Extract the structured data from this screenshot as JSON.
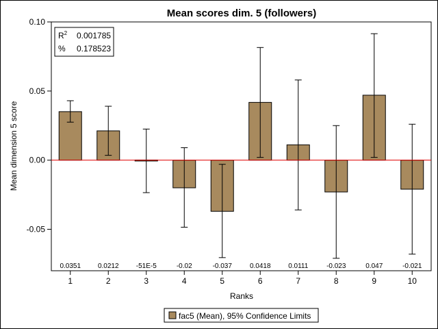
{
  "chart_data": {
    "type": "bar",
    "title": "Mean scores dim. 5 (followers)",
    "xlabel": "Ranks",
    "ylabel": "Mean dimension 5 score",
    "categories": [
      "1",
      "2",
      "3",
      "4",
      "5",
      "6",
      "7",
      "8",
      "9",
      "10"
    ],
    "values": [
      0.0351,
      0.0212,
      -0.00051,
      -0.02,
      -0.037,
      0.0418,
      0.0111,
      -0.023,
      0.047,
      -0.021
    ],
    "value_labels": [
      "0.0351",
      "0.0212",
      "-51E-5",
      "-0.02",
      "-0.037",
      "0.0418",
      "0.0111",
      "-0.023",
      "0.047",
      "-0.021"
    ],
    "ci_upper": [
      0.043,
      0.039,
      0.0225,
      0.009,
      -0.003,
      0.0815,
      0.058,
      0.025,
      0.0915,
      0.026
    ],
    "ci_lower": [
      0.0275,
      0.0035,
      -0.0235,
      -0.0485,
      -0.0705,
      0.002,
      -0.036,
      -0.071,
      0.002,
      -0.068
    ],
    "ylim": [
      -0.08,
      0.1
    ],
    "yticks": [
      -0.05,
      0.0,
      0.05,
      0.1
    ],
    "ytick_labels": [
      "-0.05",
      "0.00",
      "0.05",
      "0.10"
    ],
    "reference_line": 0,
    "legend": {
      "label": "fac5 (Mean), 95% Confidence Limits",
      "position": "bottom"
    },
    "stats": {
      "r2_label": "R",
      "r2_sup": "2",
      "r2_value": "0.001785",
      "pct_label": "%",
      "pct_value": "0.178523"
    },
    "colors": {
      "bar_fill": "#A88A5E",
      "bar_stroke": "#000000",
      "reference_line": "#E00000",
      "error_bar": "#000000"
    }
  }
}
